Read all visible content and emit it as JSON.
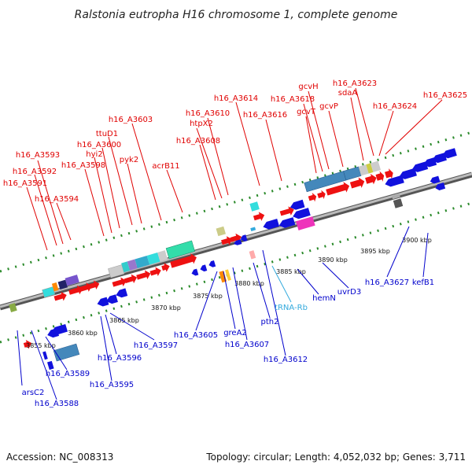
{
  "title": "Ralstonia eutropha H16 chromosome 1, complete genome",
  "footer": {
    "accession": "Accession: NC_008313",
    "topology": "Topology: circular; Length: 4,052,032 bp; Genes: 3,711"
  },
  "colors": {
    "label_top": "#e00000",
    "label_bottom": "#0000cc",
    "label_rna": "#33aadd",
    "forward_gene": "#ee1111",
    "reverse_gene": "#1111dd",
    "backbone": "#888888",
    "tick_dot": "#2a8a2a"
  },
  "scale_labels": [
    "3855 kbp",
    "3860 kbp",
    "3865 kbp",
    "3870 kbp",
    "3875 kbp",
    "3880 kbp",
    "3885 kbp",
    "3890 kbp",
    "3895 kbp",
    "3900 kbp"
  ],
  "top_labels": [
    "h16_A3593",
    "h16_A3592",
    "h16_A3591",
    "h16_A3594",
    "h16_A3598",
    "hyi2",
    "h16_A3600",
    "ttuD1",
    "pyk2",
    "h16_A3603",
    "acrB11",
    "h16_A3608",
    "htpX2",
    "h16_A3610",
    "h16_A3614",
    "h16_A3616",
    "h16_A3618",
    "gcvT",
    "gcvH",
    "gcvP",
    "sdaA",
    "h16_A3623",
    "h16_A3624",
    "h16_A3625"
  ],
  "bottom_labels": [
    "arsC2",
    "h16_A3588",
    "h16_A3589",
    "h16_A3595",
    "h16_A3596",
    "h16_A3597",
    "h16_A3605",
    "greA2",
    "h16_A3607",
    "pth2",
    "h16_A3612",
    "tRNA-Rb",
    "hemN",
    "uvrD3",
    "h16_A3627",
    "kefB1"
  ]
}
